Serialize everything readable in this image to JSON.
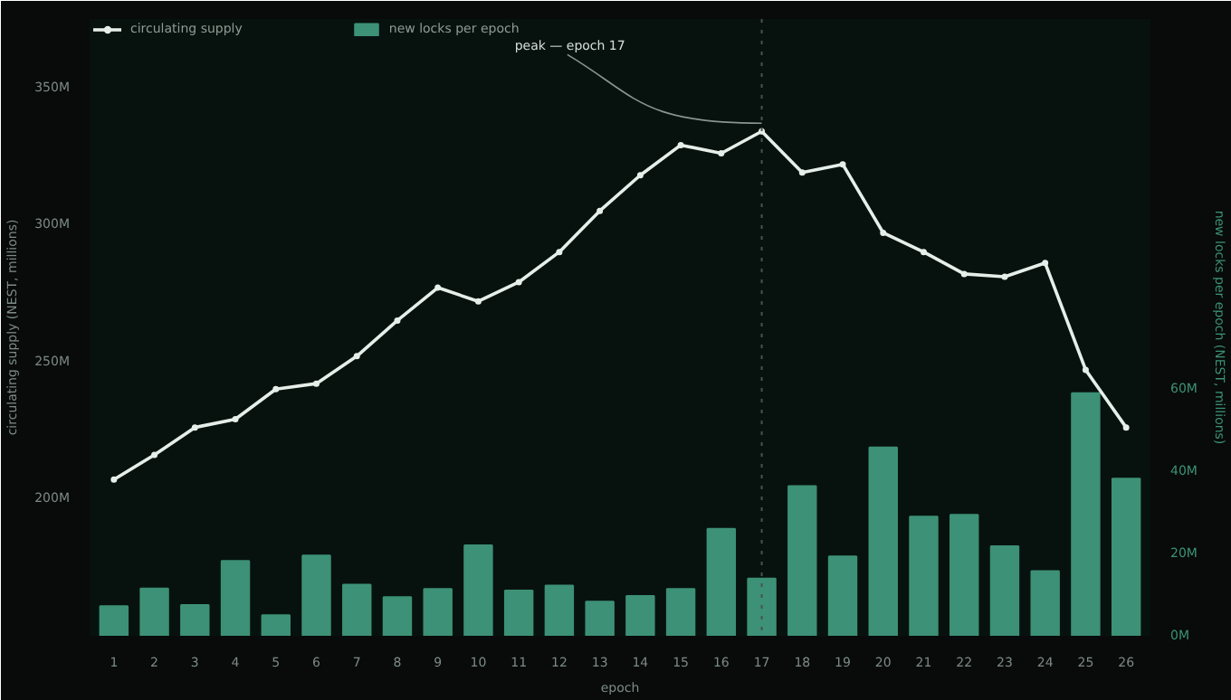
{
  "chart_data": {
    "type": "bar",
    "xlabel": "epoch",
    "ylabel": "circulating supply (NEST, millions)",
    "y2label": "new locks per epoch (NEST, millions)",
    "x": [
      1,
      2,
      3,
      4,
      5,
      6,
      7,
      8,
      9,
      10,
      11,
      12,
      13,
      14,
      15,
      16,
      17,
      18,
      19,
      20,
      21,
      22,
      23,
      24,
      25,
      26
    ],
    "series": [
      {
        "name": "circulating supply",
        "type": "line",
        "color": "#e6eee9",
        "marker": "circle",
        "values": [
          207,
          216,
          226,
          229,
          240,
          242,
          252,
          265,
          277,
          272,
          279,
          290,
          305,
          318,
          329,
          326,
          334,
          319,
          322,
          297,
          290,
          282,
          281,
          286,
          247,
          226
        ]
      },
      {
        "name": "new locks per epoch",
        "axis": "y2",
        "color": "#3d9176",
        "values": [
          7.2,
          11.5,
          7.5,
          18.2,
          5,
          19.5,
          12.4,
          9.4,
          11.4,
          22,
          11,
          12.2,
          8.3,
          9.7,
          11.4,
          26,
          13.9,
          36.4,
          19.3,
          45.8,
          29,
          29.4,
          21.8,
          15.7,
          59,
          38.2
        ]
      }
    ],
    "xlim": [
      0.4,
      26.6
    ],
    "xticks": [
      1,
      2,
      3,
      4,
      5,
      6,
      7,
      8,
      9,
      10,
      11,
      12,
      13,
      14,
      15,
      16,
      17,
      18,
      19,
      20,
      21,
      22,
      23,
      24,
      25,
      26
    ],
    "ylim": [
      150,
      375
    ],
    "yticks": [
      {
        "value": 200,
        "label": "200M"
      },
      {
        "value": 250,
        "label": "250M"
      },
      {
        "value": 300,
        "label": "300M"
      },
      {
        "value": 350,
        "label": "350M"
      }
    ],
    "y2lim": [
      0,
      150
    ],
    "y2ticks": [
      {
        "value": 0,
        "label": "0M"
      },
      {
        "value": 20,
        "label": "20M"
      },
      {
        "value": 40,
        "label": "40M"
      },
      {
        "value": 60,
        "label": "60M"
      }
    ],
    "ref_lines": [
      {
        "axis": "x",
        "value": 17,
        "color": "#4a524e",
        "line_style": "dotted"
      }
    ],
    "annotations": [
      {
        "text": "peak — epoch 17",
        "x": 17,
        "y": 334
      }
    ],
    "legend": "top left",
    "grid": false
  }
}
